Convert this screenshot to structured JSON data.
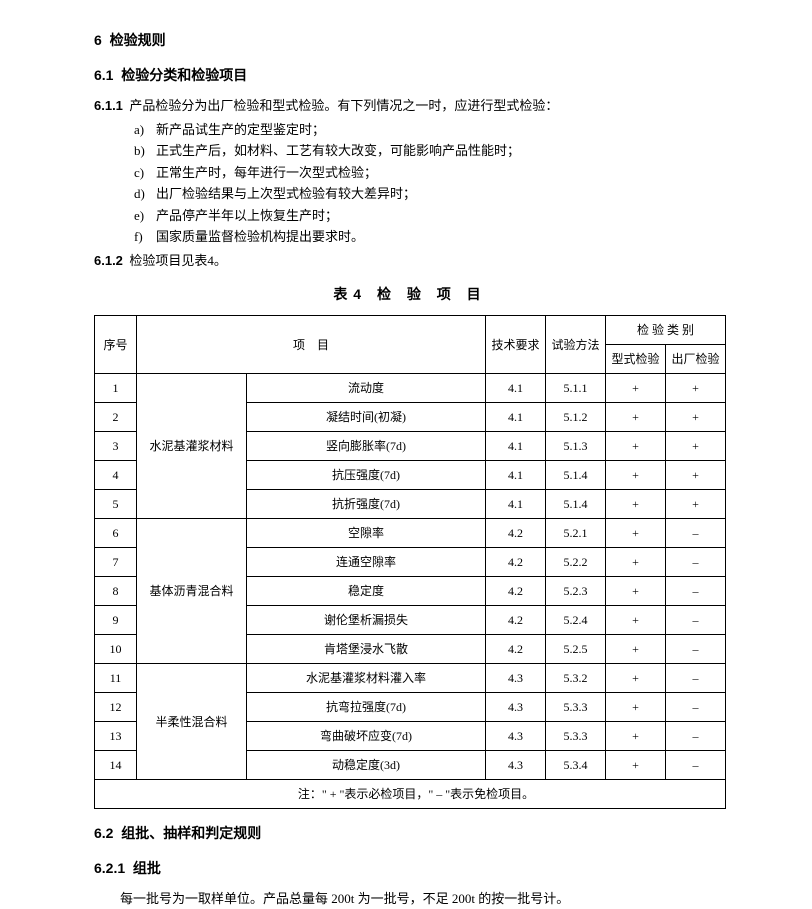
{
  "sec6": {
    "num": "6",
    "title": "检验规则"
  },
  "sec61": {
    "num": "6.1",
    "title": "检验分类和检验项目"
  },
  "c611": {
    "lead": "6.1.1",
    "text": "产品检验分为出厂检验和型式检验。有下列情况之一时，应进行型式检验：",
    "items": [
      {
        "mark": "a)",
        "text": "新产品试生产的定型鉴定时；"
      },
      {
        "mark": "b)",
        "text": "正式生产后，如材料、工艺有较大改变，可能影响产品性能时；"
      },
      {
        "mark": "c)",
        "text": "正常生产时，每年进行一次型式检验；"
      },
      {
        "mark": "d)",
        "text": "出厂检验结果与上次型式检验有较大差异时；"
      },
      {
        "mark": "e)",
        "text": "产品停产半年以上恢复生产时；"
      },
      {
        "mark": "f)",
        "text": "国家质量监督检验机构提出要求时。"
      }
    ]
  },
  "c612": {
    "lead": "6.1.2",
    "text": "检验项目见表4。"
  },
  "table4": {
    "caption": "表4 检 验 项 目",
    "head": {
      "seq": "序号",
      "item": "项　目",
      "req": "技术要求",
      "method": "试验方法",
      "cat": "检 验 类 别",
      "type": "型式检验",
      "factory": "出厂检验"
    },
    "groups": [
      {
        "name": "水泥基灌浆材料",
        "rows": [
          {
            "n": "1",
            "p": "流动度",
            "r": "4.1",
            "m": "5.1.1",
            "t": "+",
            "f": "+"
          },
          {
            "n": "2",
            "p": "凝结时间(初凝)",
            "r": "4.1",
            "m": "5.1.2",
            "t": "+",
            "f": "+"
          },
          {
            "n": "3",
            "p": "竖向膨胀率(7d)",
            "r": "4.1",
            "m": "5.1.3",
            "t": "+",
            "f": "+"
          },
          {
            "n": "4",
            "p": "抗压强度(7d)",
            "r": "4.1",
            "m": "5.1.4",
            "t": "+",
            "f": "+"
          },
          {
            "n": "5",
            "p": "抗折强度(7d)",
            "r": "4.1",
            "m": "5.1.4",
            "t": "+",
            "f": "+"
          }
        ]
      },
      {
        "name": "基体沥青混合料",
        "rows": [
          {
            "n": "6",
            "p": "空隙率",
            "r": "4.2",
            "m": "5.2.1",
            "t": "+",
            "f": "–"
          },
          {
            "n": "7",
            "p": "连通空隙率",
            "r": "4.2",
            "m": "5.2.2",
            "t": "+",
            "f": "–"
          },
          {
            "n": "8",
            "p": "稳定度",
            "r": "4.2",
            "m": "5.2.3",
            "t": "+",
            "f": "–"
          },
          {
            "n": "9",
            "p": "谢伦堡析漏损失",
            "r": "4.2",
            "m": "5.2.4",
            "t": "+",
            "f": "–"
          },
          {
            "n": "10",
            "p": "肯塔堡浸水飞散",
            "r": "4.2",
            "m": "5.2.5",
            "t": "+",
            "f": "–"
          }
        ]
      },
      {
        "name": "半柔性混合料",
        "rows": [
          {
            "n": "11",
            "p": "水泥基灌浆材料灌入率",
            "r": "4.3",
            "m": "5.3.2",
            "t": "+",
            "f": "–"
          },
          {
            "n": "12",
            "p": "抗弯拉强度(7d)",
            "r": "4.3",
            "m": "5.3.3",
            "t": "+",
            "f": "–"
          },
          {
            "n": "13",
            "p": "弯曲破坏应变(7d)",
            "r": "4.3",
            "m": "5.3.3",
            "t": "+",
            "f": "–"
          },
          {
            "n": "14",
            "p": "动稳定度(3d)",
            "r": "4.3",
            "m": "5.3.4",
            "t": "+",
            "f": "–"
          }
        ]
      }
    ],
    "note": "注：\" + \"表示必检项目，\" – \"表示免检项目。"
  },
  "sec62": {
    "num": "6.2",
    "title": "组批、抽样和判定规则"
  },
  "sec621": {
    "num": "6.2.1",
    "title": "组批"
  },
  "p621": "每一批号为一取样单位。产品总量每 200t 为一批号，不足 200t 的按一批号计。"
}
